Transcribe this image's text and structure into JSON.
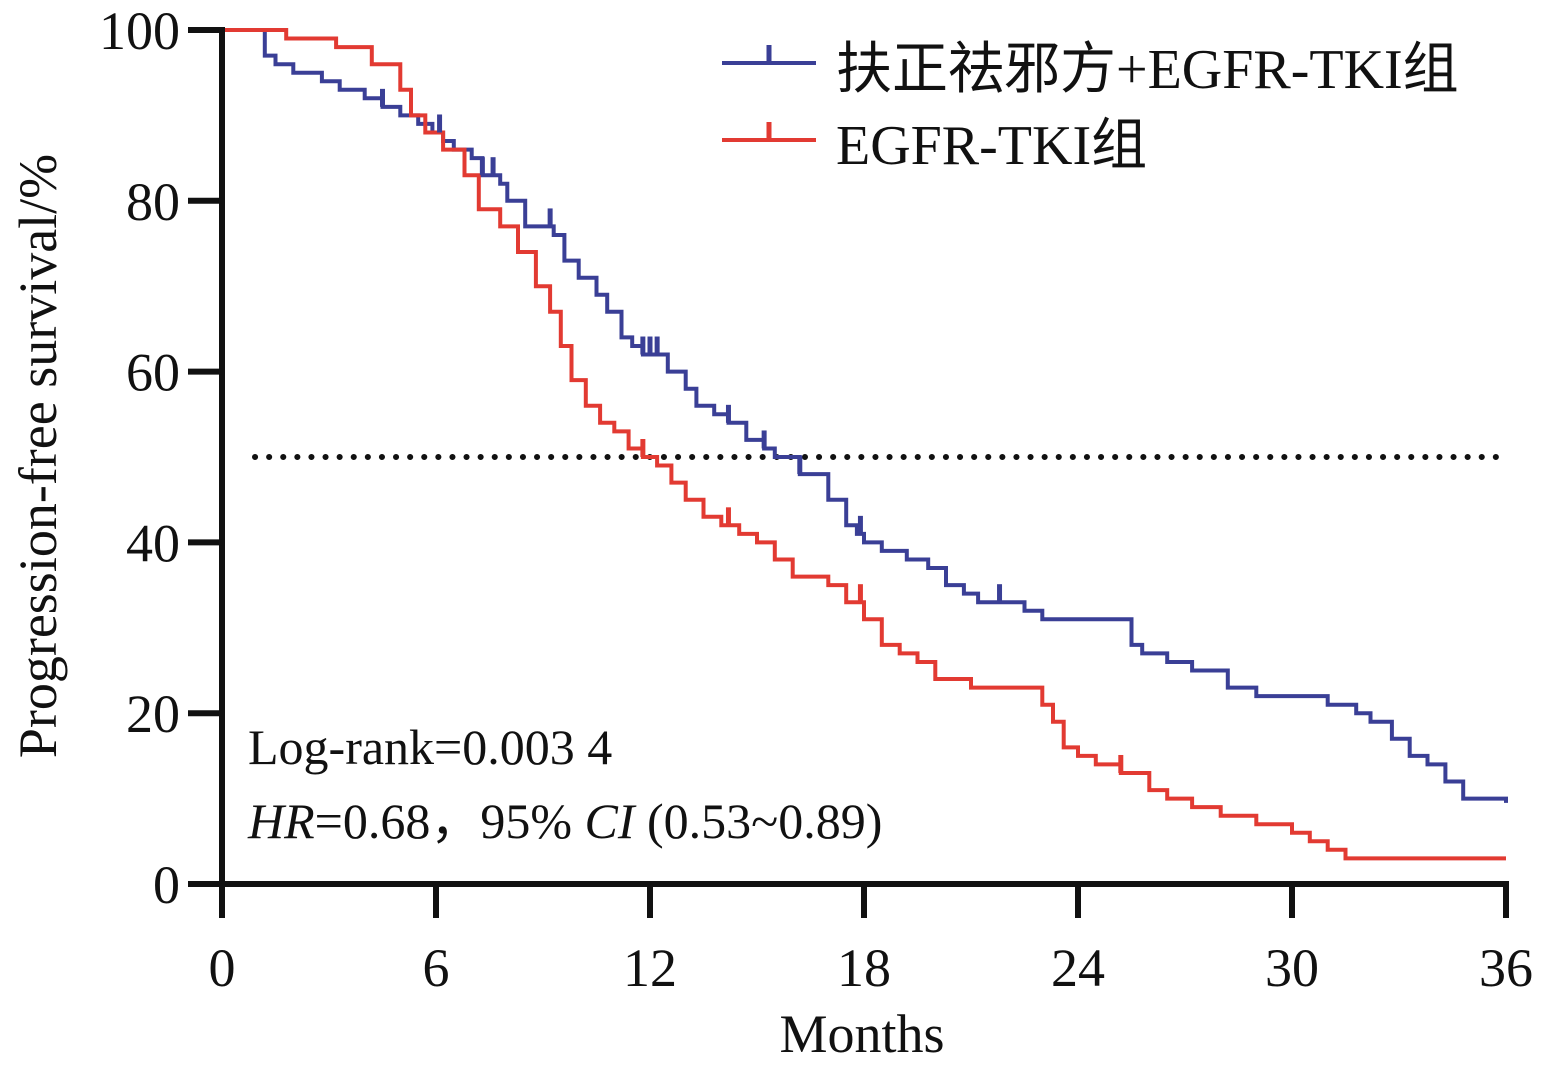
{
  "chart_data": {
    "type": "line",
    "xlabel": "Months",
    "ylabel": "Progression-free survival/%",
    "xlim": [
      0,
      36
    ],
    "ylim": [
      0,
      100
    ],
    "xticks": [
      "0",
      "6",
      "12",
      "18",
      "24",
      "30",
      "36"
    ],
    "yticks": [
      "0",
      "20",
      "40",
      "60",
      "80",
      "100"
    ],
    "reference_line": {
      "y": 50,
      "style": "dotted"
    },
    "legend_position": "top-right",
    "series": [
      {
        "name": "扶正祛邪方+EGFR-TKI组",
        "color": "#3a3f96",
        "x": [
          0,
          1.2,
          1.5,
          2,
          2.8,
          3.3,
          4,
          4.5,
          5,
          5.5,
          5.9,
          6.2,
          6.5,
          7,
          7.3,
          7.8,
          8,
          8.5,
          9.3,
          9.6,
          10,
          10.5,
          10.8,
          11.2,
          11.5,
          11.8,
          12.2,
          12.5,
          13,
          13.3,
          13.8,
          14.2,
          14.7,
          15.2,
          15.5,
          16.2,
          17,
          17.5,
          17.8,
          18,
          18.5,
          19.2,
          19.8,
          20.3,
          20.8,
          21.2,
          21.8,
          22.5,
          23,
          24.2,
          25.5,
          25.8,
          26.5,
          27.2,
          28.2,
          29,
          30.5,
          31,
          31.8,
          32.2,
          32.8,
          33.3,
          33.8,
          34.3,
          34.8,
          36
        ],
        "y": [
          100,
          97,
          96,
          95,
          94,
          93,
          92,
          91,
          90,
          89,
          88,
          87,
          86,
          85,
          83,
          82,
          80,
          77,
          76,
          73,
          71,
          69,
          67,
          64,
          63,
          62,
          62,
          60,
          58,
          56,
          55,
          54,
          52,
          51,
          50,
          48,
          45,
          42,
          41,
          40,
          39,
          38,
          37,
          35,
          34,
          33,
          33,
          32,
          31,
          31,
          28,
          27,
          26,
          25,
          23,
          22,
          22,
          21,
          20,
          19,
          17,
          15,
          14,
          12,
          10,
          9.5
        ]
      },
      {
        "name": "EGFR-TKI组",
        "color": "#e23a32",
        "x": [
          0,
          1.8,
          3.2,
          4.2,
          5,
          5.3,
          5.7,
          6.2,
          6.8,
          7.2,
          7.8,
          8.3,
          8.8,
          9.2,
          9.5,
          9.8,
          10.2,
          10.6,
          11,
          11.4,
          11.8,
          12.2,
          12.6,
          13,
          13.5,
          14,
          14.5,
          15,
          15.5,
          16,
          17,
          17.5,
          18,
          18.5,
          19,
          19.5,
          20,
          21,
          22.5,
          23,
          23.3,
          23.6,
          24,
          24.5,
          25.2,
          26,
          26.5,
          27.2,
          28,
          29,
          30,
          30.5,
          31,
          31.5,
          36
        ],
        "y": [
          100,
          99,
          98,
          96,
          93,
          90,
          88,
          86,
          83,
          79,
          77,
          74,
          70,
          67,
          63,
          59,
          56,
          54,
          53,
          51,
          50,
          49,
          47,
          45,
          43,
          42,
          41,
          40,
          38,
          36,
          35,
          33,
          31,
          28,
          27,
          26,
          24,
          23,
          23,
          21,
          19,
          16,
          15,
          14,
          13,
          11,
          10,
          9,
          8,
          7,
          6,
          5,
          4,
          3,
          3
        ]
      }
    ],
    "censor_marks": [
      {
        "series": 0,
        "x": [
          4.5,
          6.1,
          7.3,
          7.6,
          9.2,
          11.8,
          12.0,
          12.2,
          14.2,
          15.2,
          16.2,
          17.9,
          21.8
        ]
      },
      {
        "series": 1,
        "x": [
          11.8,
          14.2,
          17.9,
          25.2
        ]
      }
    ],
    "annotations": {
      "logrank": "Log-rank=0.003 4",
      "hr_label": "HR",
      "hr_value": "=0.68，95% ",
      "ci_label": "CI",
      "ci_value": " (0.53~0.89)"
    }
  }
}
